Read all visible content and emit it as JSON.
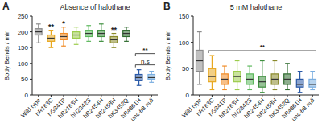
{
  "chart_data": [
    {
      "type": "box",
      "panel": "A",
      "title": "Absence of halothane",
      "y_label": "Body Bends / min",
      "categories": [
        "Wild type",
        "hR163C",
        "hG341R",
        "hR2163H",
        "hN2342S",
        "hR2454H",
        "hR2458H",
        "hK3452Q",
        "hR4861H",
        "unc-68 null"
      ],
      "colors": [
        "#8c8c8c",
        "#e8a820",
        "#f08a24",
        "#9ccc4c",
        "#5cb85c",
        "#3f8f3f",
        "#8a8a2a",
        "#2f6b2f",
        "#2a5aa8",
        "#7aaee0"
      ],
      "min": [
        165,
        150,
        155,
        160,
        170,
        170,
        150,
        170,
        30,
        40
      ],
      "q1": [
        190,
        170,
        175,
        180,
        185,
        185,
        165,
        185,
        45,
        50
      ],
      "median": [
        200,
        180,
        185,
        190,
        195,
        195,
        175,
        195,
        55,
        55
      ],
      "q3": [
        210,
        190,
        195,
        200,
        205,
        205,
        185,
        205,
        65,
        65
      ],
      "max": [
        225,
        205,
        215,
        215,
        220,
        225,
        195,
        215,
        80,
        75
      ],
      "ylim": [
        0,
        250
      ],
      "yticks": [
        0,
        50,
        100,
        150,
        200,
        250
      ],
      "annotations": [
        {
          "text": "**",
          "category": "hR163C"
        },
        {
          "text": "*",
          "category": "hG341R"
        },
        {
          "text": "**",
          "category": "hR2458H"
        }
      ],
      "brackets": [
        {
          "text": "n.s",
          "from": "hR4861H",
          "to": "unc-68 null"
        },
        {
          "text": "**",
          "from": "hR4861H",
          "to": "unc-68 null"
        }
      ]
    },
    {
      "type": "box",
      "panel": "B",
      "title": "5 mM halothane",
      "y_label": "Body Bends / min",
      "categories": [
        "Wild type",
        "hR163C",
        "hG341R",
        "hR2163H",
        "hN2342S",
        "hR2454H",
        "hR2458H",
        "hK3452Q",
        "hR4861H",
        "unc-68 null"
      ],
      "colors": [
        "#8c8c8c",
        "#e8a820",
        "#f08a24",
        "#9ccc4c",
        "#5cb85c",
        "#3f8f3f",
        "#8a8a2a",
        "#2f6b2f",
        "#2a5aa8",
        "#7aaee0"
      ],
      "min": [
        20,
        10,
        10,
        10,
        10,
        5,
        10,
        10,
        5,
        10
      ],
      "q1": [
        45,
        25,
        20,
        25,
        20,
        15,
        20,
        20,
        15,
        15
      ],
      "median": [
        65,
        35,
        30,
        35,
        30,
        25,
        30,
        30,
        20,
        20
      ],
      "q3": [
        85,
        50,
        40,
        45,
        40,
        35,
        40,
        40,
        30,
        30
      ],
      "max": [
        120,
        75,
        55,
        65,
        55,
        65,
        65,
        60,
        45,
        45
      ],
      "ylim": [
        0,
        150
      ],
      "yticks": [
        0,
        50,
        100,
        150
      ],
      "annotations": [],
      "brackets": [
        {
          "text": "**",
          "from": "hR163C",
          "to": "unc-68 null"
        }
      ]
    }
  ]
}
